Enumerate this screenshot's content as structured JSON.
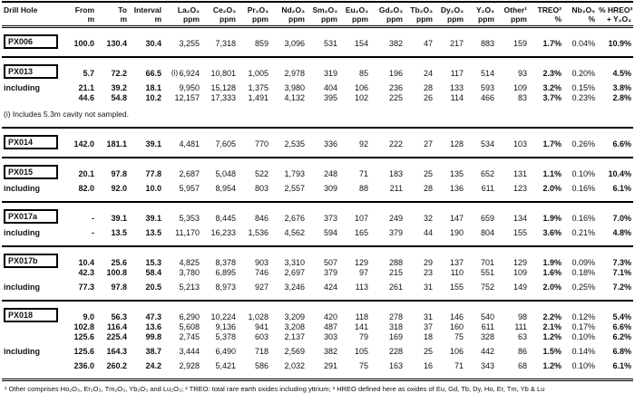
{
  "table": {
    "columns": [
      {
        "label": "Drill Hole",
        "unit": ""
      },
      {
        "label": "From",
        "unit": "m"
      },
      {
        "label": "To",
        "unit": "m"
      },
      {
        "label": "Interval",
        "unit": "m"
      },
      {
        "label": "La₂O₃",
        "unit": "ppm"
      },
      {
        "label": "Ce₂O₃",
        "unit": "ppm"
      },
      {
        "label": "Pr₂O₃",
        "unit": "ppm"
      },
      {
        "label": "Nd₂O₃",
        "unit": "ppm"
      },
      {
        "label": "Sm₂O₃",
        "unit": "ppm"
      },
      {
        "label": "Eu₂O₃",
        "unit": "ppm"
      },
      {
        "label": "Gd₂O₃",
        "unit": "ppm"
      },
      {
        "label": "Tb₂O₃",
        "unit": "ppm"
      },
      {
        "label": "Dy₂O₃",
        "unit": "ppm"
      },
      {
        "label": "Y₂O₃",
        "unit": "ppm"
      },
      {
        "label": "Other¹",
        "unit": "ppm"
      },
      {
        "label": "TREO²",
        "unit": "%"
      },
      {
        "label": "Nb₂O₅",
        "unit": "%"
      },
      {
        "label": "% HREO³",
        "unit": "+ Y₂O₃"
      }
    ],
    "sections": [
      {
        "rows": [
          {
            "hole": "PX006",
            "from": "100.0",
            "to": "130.4",
            "interval": "30.4",
            "values": [
              "3,255",
              "7,318",
              "859",
              "3,096",
              "531",
              "154",
              "382",
              "47",
              "217",
              "883",
              "159"
            ],
            "treo": "1.7%",
            "nb2o5": "0.04%",
            "hreo": "10.9%"
          }
        ]
      },
      {
        "rows": [
          {
            "hole": "PX013",
            "from": "5.7",
            "to": "72.2",
            "interval": "66.5",
            "marker": "(i)",
            "values": [
              "6,924",
              "10,801",
              "1,005",
              "2,978",
              "319",
              "85",
              "196",
              "24",
              "117",
              "514",
              "93"
            ],
            "treo": "2.3%",
            "nb2o5": "0.20%",
            "hreo": "4.5%"
          },
          {
            "label": "including",
            "gap_before": true,
            "from": "21.1",
            "to": "39.2",
            "interval": "18.1",
            "values": [
              "9,950",
              "15,128",
              "1,375",
              "3,980",
              "404",
              "106",
              "236",
              "28",
              "133",
              "593",
              "109"
            ],
            "treo": "3.2%",
            "nb2o5": "0.15%",
            "hreo": "3.8%"
          },
          {
            "from": "44.6",
            "to": "54.8",
            "interval": "10.2",
            "values": [
              "12,157",
              "17,333",
              "1,491",
              "4,132",
              "395",
              "102",
              "225",
              "26",
              "114",
              "466",
              "83"
            ],
            "treo": "3.7%",
            "nb2o5": "0.23%",
            "hreo": "2.8%"
          }
        ],
        "note": "(i) Includes 5.3m cavity not sampled."
      },
      {
        "rows": [
          {
            "hole": "PX014",
            "from": "142.0",
            "to": "181.1",
            "interval": "39.1",
            "values": [
              "4,481",
              "7,605",
              "770",
              "2,535",
              "336",
              "92",
              "222",
              "27",
              "128",
              "534",
              "103"
            ],
            "treo": "1.7%",
            "nb2o5": "0.26%",
            "hreo": "6.6%"
          }
        ]
      },
      {
        "rows": [
          {
            "hole": "PX015",
            "from": "20.1",
            "to": "97.8",
            "interval": "77.8",
            "values": [
              "2,687",
              "5,048",
              "522",
              "1,793",
              "248",
              "71",
              "183",
              "25",
              "135",
              "652",
              "131"
            ],
            "treo": "1.1%",
            "nb2o5": "0.10%",
            "hreo": "10.4%"
          },
          {
            "label": "including",
            "gap_before": true,
            "from": "82.0",
            "to": "92.0",
            "interval": "10.0",
            "values": [
              "5,957",
              "8,954",
              "803",
              "2,557",
              "309",
              "88",
              "211",
              "28",
              "136",
              "611",
              "123"
            ],
            "treo": "2.0%",
            "nb2o5": "0.16%",
            "hreo": "6.1%"
          }
        ]
      },
      {
        "rows": [
          {
            "hole": "PX017a",
            "from": "-",
            "to": "39.1",
            "interval": "39.1",
            "values": [
              "5,353",
              "8,445",
              "846",
              "2,676",
              "373",
              "107",
              "249",
              "32",
              "147",
              "659",
              "134"
            ],
            "treo": "1.9%",
            "nb2o5": "0.16%",
            "hreo": "7.0%"
          },
          {
            "label": "including",
            "gap_before": true,
            "from": "-",
            "to": "13.5",
            "interval": "13.5",
            "values": [
              "11,170",
              "16,233",
              "1,536",
              "4,562",
              "594",
              "165",
              "379",
              "44",
              "190",
              "804",
              "155"
            ],
            "treo": "3.6%",
            "nb2o5": "0.21%",
            "hreo": "4.8%"
          }
        ]
      },
      {
        "rows": [
          {
            "hole": "PX017b",
            "from": "10.4",
            "to": "25.6",
            "interval": "15.3",
            "values": [
              "4,825",
              "8,378",
              "903",
              "3,310",
              "507",
              "129",
              "288",
              "29",
              "137",
              "701",
              "129"
            ],
            "treo": "1.9%",
            "nb2o5": "0.09%",
            "hreo": "7.3%"
          },
          {
            "from": "42.3",
            "to": "100.8",
            "interval": "58.4",
            "values": [
              "3,780",
              "6,895",
              "746",
              "2,697",
              "379",
              "97",
              "215",
              "23",
              "110",
              "551",
              "109"
            ],
            "treo": "1.6%",
            "nb2o5": "0.18%",
            "hreo": "7.1%"
          },
          {
            "label": "including",
            "gap_before": true,
            "from": "77.3",
            "to": "97.8",
            "interval": "20.5",
            "values": [
              "5,213",
              "8,973",
              "927",
              "3,246",
              "424",
              "113",
              "261",
              "31",
              "155",
              "752",
              "149"
            ],
            "treo": "2.0%",
            "nb2o5": "0.25%",
            "hreo": "7.2%"
          }
        ]
      },
      {
        "rows": [
          {
            "hole": "PX018",
            "from": "9.0",
            "to": "56.3",
            "interval": "47.3",
            "values": [
              "6,290",
              "10,224",
              "1,028",
              "3,209",
              "420",
              "118",
              "278",
              "31",
              "146",
              "540",
              "98"
            ],
            "treo": "2.2%",
            "nb2o5": "0.12%",
            "hreo": "5.4%"
          },
          {
            "from": "102.8",
            "to": "116.4",
            "interval": "13.6",
            "values": [
              "5,608",
              "9,136",
              "941",
              "3,208",
              "487",
              "141",
              "318",
              "37",
              "160",
              "611",
              "111"
            ],
            "treo": "2.1%",
            "nb2o5": "0.17%",
            "hreo": "6.6%"
          },
          {
            "from": "125.6",
            "to": "225.4",
            "interval": "99.8",
            "values": [
              "2,745",
              "5,378",
              "603",
              "2,137",
              "303",
              "79",
              "169",
              "18",
              "75",
              "328",
              "63"
            ],
            "treo": "1.2%",
            "nb2o5": "0.10%",
            "hreo": "6.2%"
          },
          {
            "label": "including",
            "gap_before": true,
            "from": "125.6",
            "to": "164.3",
            "interval": "38.7",
            "values": [
              "3,444",
              "6,490",
              "718",
              "2,569",
              "382",
              "105",
              "228",
              "25",
              "106",
              "442",
              "86"
            ],
            "treo": "1.5%",
            "nb2o5": "0.14%",
            "hreo": "6.8%"
          },
          {
            "gap_before": true,
            "from": "236.0",
            "to": "260.2",
            "interval": "24.2",
            "values": [
              "2,928",
              "5,421",
              "586",
              "2,032",
              "291",
              "75",
              "163",
              "16",
              "71",
              "343",
              "68"
            ],
            "treo": "1.2%",
            "nb2o5": "0.10%",
            "hreo": "6.1%"
          }
        ]
      }
    ],
    "footnote": "¹ Other comprises Ho₂O₃, Er₂O₃, Tm₂O₃, Yb₂O₃ and Lu₂O₃; ² TREO: total rare earth oxides including yttrium; ³ HREO defined here as oxides of Eu, Gd, Tb, Dy, Ho, Er, Tm, Yb & Lu"
  }
}
